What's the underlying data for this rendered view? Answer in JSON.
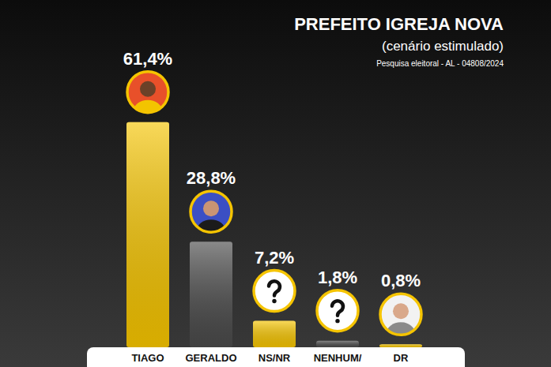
{
  "chart_data": {
    "type": "bar",
    "title": "PREFEITO IGREJA NOVA",
    "subtitle": "(cenário estimulado)",
    "note": "Pesquisa eleitoral - AL - 04808/2024",
    "categories": [
      "TIAGO",
      "GERALDO",
      "NS/NR",
      "NENHUM/",
      "DR"
    ],
    "values": [
      61.4,
      28.8,
      7.2,
      1.8,
      0.8
    ],
    "value_labels": [
      "61,4%",
      "28,8%",
      "7,2%",
      "1,8%",
      "0,8%"
    ],
    "colors": [
      "#f5c400",
      "#4a4a4a",
      "#f5c400",
      "#4a4a4a",
      "#f5c400"
    ],
    "ylim": [
      0,
      65
    ],
    "data_labels": true,
    "tick_labels": false,
    "grid": false
  }
}
